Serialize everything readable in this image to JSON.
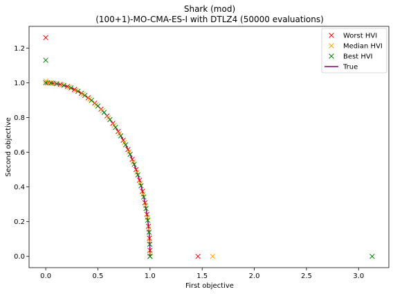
{
  "chart_data": {
    "type": "scatter",
    "title_line1": "Shark (mod)",
    "title_line2": "(100+1)-MO-CMA-ES-I with DTLZ4 (50000 evaluations)",
    "xlabel": "First objective",
    "ylabel": "Second objective",
    "xlim": [
      -0.16,
      3.29
    ],
    "ylim": [
      -0.065,
      1.325
    ],
    "x_ticks": [
      "0.0",
      "0.5",
      "1.0",
      "1.5",
      "2.0",
      "2.5",
      "3.0"
    ],
    "x_tick_values": [
      0,
      0.5,
      1.0,
      1.5,
      2.0,
      2.5,
      3.0
    ],
    "y_ticks": [
      "0.0",
      "0.2",
      "0.4",
      "0.6",
      "0.8",
      "1.0",
      "1.2"
    ],
    "y_tick_values": [
      0,
      0.2,
      0.4,
      0.6,
      0.8,
      1.0,
      1.2
    ],
    "grid": false,
    "legend_position": "top-right",
    "series": [
      {
        "name": "Worst HVI",
        "color": "#ff0000",
        "marker": "x",
        "extra_points": [
          [
            0.0,
            1.26
          ],
          [
            1.46,
            0.0
          ]
        ],
        "front_angles_deg": [
          1,
          4,
          8,
          12,
          16,
          20,
          24,
          28,
          32,
          36,
          40,
          44,
          48,
          52,
          56,
          60,
          64,
          68,
          72,
          76,
          80,
          84,
          88
        ]
      },
      {
        "name": "Median HVI",
        "color": "#ffa500",
        "marker": "x",
        "extra_points": [
          [
            0.0,
            1.01
          ],
          [
            1.6,
            0.0
          ]
        ],
        "front_angles_deg": [
          2,
          5,
          9,
          13,
          17,
          21,
          25,
          29,
          33,
          37,
          41,
          45,
          49,
          53,
          57,
          61,
          65,
          69,
          73,
          77,
          81,
          85,
          89
        ]
      },
      {
        "name": "Best HVI",
        "color": "#008000",
        "marker": "x",
        "extra_points": [
          [
            0.0,
            1.13
          ],
          [
            3.13,
            0.0
          ],
          [
            1.0,
            0.0
          ]
        ],
        "front_angles_deg": [
          0,
          3,
          6,
          10,
          14,
          18,
          22,
          26,
          30,
          34,
          38,
          42,
          46,
          50,
          54,
          58,
          62,
          66,
          70,
          74,
          78,
          82,
          86,
          90
        ]
      },
      {
        "name": "True",
        "color": "#800080",
        "marker": "line",
        "curve": "quarter-circle x^2 + y^2 = 1, x in [0, 1]"
      }
    ]
  }
}
